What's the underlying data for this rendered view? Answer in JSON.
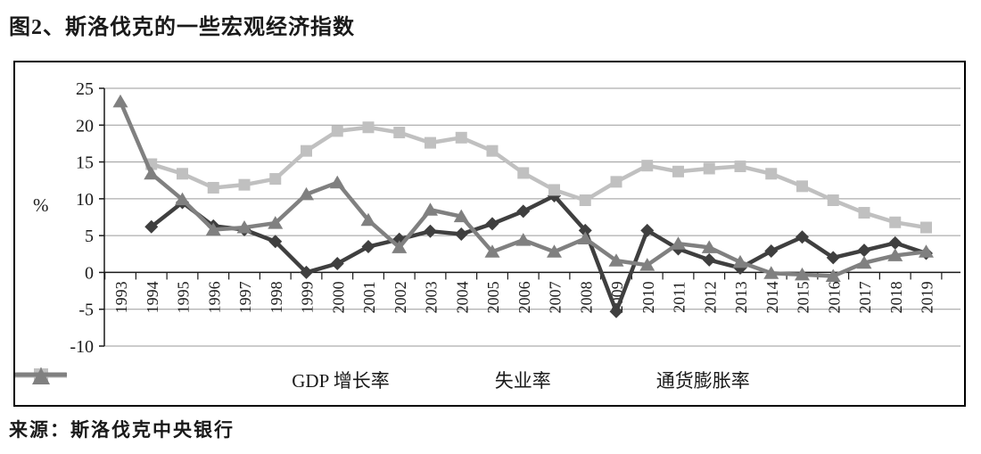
{
  "title": "图2、斯洛伐克的一些宏观经济指数",
  "source": "来源：斯洛伐克中央银行",
  "colors": {
    "gdp": "#3f3f3f",
    "unemployment": "#c0c0c0",
    "inflation": "#808080",
    "gridline": "#9a9a9a",
    "axis": "#1a1a1a"
  },
  "chart_data": {
    "type": "line",
    "title": "",
    "xlabel": "",
    "ylabel": "%",
    "ylim": [
      -10,
      25
    ],
    "yticks": [
      25,
      20,
      15,
      10,
      5,
      0,
      -5,
      -10
    ],
    "grid": true,
    "legend_position": "bottom",
    "categories": [
      "1993",
      "1994",
      "1995",
      "1996",
      "1997",
      "1998",
      "1999",
      "2000",
      "2001",
      "2002",
      "2003",
      "2004",
      "2005",
      "2006",
      "2007",
      "2008",
      "2009",
      "2010",
      "2011",
      "2012",
      "2013",
      "2014",
      "2015",
      "2016",
      "2017",
      "2018",
      "2019"
    ],
    "series": [
      {
        "name": "GDP 增长率",
        "marker": "diamond",
        "color": "#3f3f3f",
        "values": [
          null,
          6.2,
          9.5,
          6.3,
          5.8,
          4.2,
          0.0,
          1.2,
          3.5,
          4.5,
          5.6,
          5.2,
          6.6,
          8.3,
          10.4,
          5.7,
          -5.3,
          5.7,
          3.2,
          1.7,
          0.6,
          2.9,
          4.8,
          2.0,
          3.0,
          4.0,
          2.6
        ]
      },
      {
        "name": "失业率",
        "marker": "square",
        "color": "#c0c0c0",
        "values": [
          null,
          14.7,
          13.4,
          11.5,
          11.9,
          12.7,
          16.5,
          19.2,
          19.7,
          19.0,
          17.6,
          18.3,
          16.5,
          13.5,
          11.2,
          9.8,
          12.3,
          14.5,
          13.7,
          14.1,
          14.4,
          13.4,
          11.7,
          9.8,
          8.1,
          6.8,
          6.1
        ]
      },
      {
        "name": "通货膨胀率",
        "marker": "triangle",
        "color": "#808080",
        "values": [
          23.2,
          13.4,
          9.9,
          5.8,
          6.1,
          6.7,
          10.6,
          12.2,
          7.1,
          3.4,
          8.5,
          7.6,
          2.8,
          4.4,
          2.8,
          4.6,
          1.6,
          1.0,
          3.9,
          3.4,
          1.4,
          -0.1,
          -0.3,
          -0.5,
          1.3,
          2.3,
          2.8
        ]
      }
    ]
  }
}
